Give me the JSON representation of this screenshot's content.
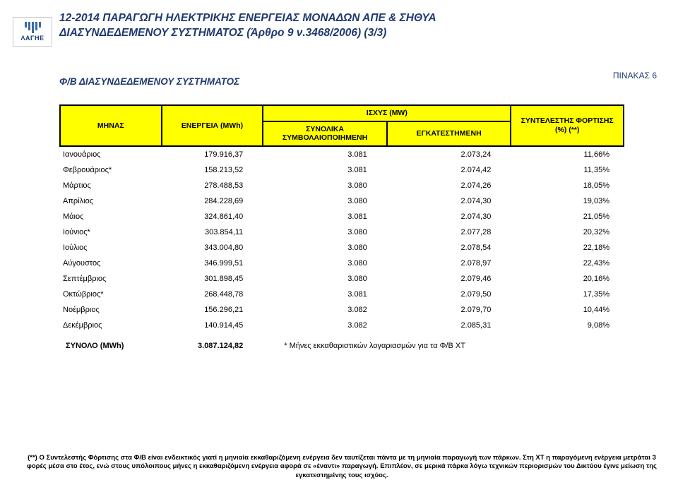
{
  "logo": {
    "label": "ΛΑΓΗΕ"
  },
  "header": {
    "line1": "12-2014 ΠΑΡΑΓΩΓΗ ΗΛΕΚΤΡΙΚΗΣ ΕΝΕΡΓΕΙΑΣ ΜΟΝΑΔΩΝ ΑΠΕ & ΣΗΘΥΑ",
    "line2": "ΔΙΑΣΥΝΔΕΔΕΜΕΝΟΥ ΣΥΣΤΗΜΑΤΟΣ (Άρθρο 9 ν.3468/2006) (3/3)"
  },
  "subtitle": "Φ/Β ΔΙΑΣΥΝΔΕΔΕΜΕΝΟΥ ΣΥΣΤΗΜΑΤΟΣ",
  "pinax": "ΠΙΝΑΚΑΣ 6",
  "table": {
    "headers": {
      "month": "ΜΗΝΑΣ",
      "energy": "ΕΝΕΡΓΕΙΑ (MWh)",
      "power_group": "ΙΣΧΥΣ (MW)",
      "power_contracted": "ΣΥΝΟΛΙΚΑ ΣΥΜΒΟΛΑΙΟΠΟΙΗΜΕΝΗ",
      "power_installed": "ΕΓΚΑΤΕΣΤΗΜΕΝΗ",
      "load_factor": "ΣΥΝΤΕΛΕΣΤΗΣ ΦΟΡΤΙΣΗΣ (%) (**)"
    },
    "rows": [
      {
        "m": "Ιανουάριος",
        "e": "179.916,37",
        "c": "3.081",
        "i": "2.073,24",
        "f": "11,66%"
      },
      {
        "m": "Φεβρουάριος*",
        "e": "158.213,52",
        "c": "3.081",
        "i": "2.074,42",
        "f": "11,35%"
      },
      {
        "m": "Μάρτιος",
        "e": "278.488,53",
        "c": "3.080",
        "i": "2.074,26",
        "f": "18,05%"
      },
      {
        "m": "Απρίλιος",
        "e": "284.228,69",
        "c": "3.080",
        "i": "2.074,30",
        "f": "19,03%"
      },
      {
        "m": "Μάιος",
        "e": "324.861,40",
        "c": "3.081",
        "i": "2.074,30",
        "f": "21,05%"
      },
      {
        "m": "Ιούνιος*",
        "e": "303.854,11",
        "c": "3.080",
        "i": "2.077,28",
        "f": "20,32%"
      },
      {
        "m": "Ιούλιος",
        "e": "343.004,80",
        "c": "3.080",
        "i": "2.078,54",
        "f": "22,18%"
      },
      {
        "m": "Αύγουστος",
        "e": "346.999,51",
        "c": "3.080",
        "i": "2.078,97",
        "f": "22,43%"
      },
      {
        "m": "Σεπτέμβριος",
        "e": "301.898,45",
        "c": "3.080",
        "i": "2.079,46",
        "f": "20,16%"
      },
      {
        "m": "Οκτώβριος*",
        "e": "268.448,78",
        "c": "3.081",
        "i": "2.079,50",
        "f": "17,35%"
      },
      {
        "m": "Νοέμβριος",
        "e": "156.296,21",
        "c": "3.082",
        "i": "2.079,70",
        "f": "10,44%"
      },
      {
        "m": "Δεκέμβριος",
        "e": "140.914,45",
        "c": "3.082",
        "i": "2.085,31",
        "f": "9,08%"
      }
    ],
    "total": {
      "label": "ΣΥΝΟΛΟ (MWh)",
      "value": "3.087.124,82",
      "note": "* Μήνες εκκαθαριστικών λογαριασμών για τα Φ/Β ΧΤ"
    }
  },
  "footnote": "(**) Ο Συντελεστής Φόρτισης στα Φ/Β είναι ενδεικτικός γιατί η μηνιαία εκκαθαριζόμενη ενέργεια δεν ταυτίζεται πάντα με τη μηνιαία παραγωγή των πάρκων. Στη ΧΤ η παραγόμενη ενέργεια μετράται 3 φορές μέσα στο έτος, ενώ στους υπόλοιπους μήνες η εκκαθαριζόμενη ενέργεια αφορά σε «έναντι» παραγωγή. Επιπλέον, σε μερικά πάρκα λόγω τεχνικών περιορισμών του Δικτύου έγινε μείωση της εγκατεστημένης τους ισχύος.",
  "styling": {
    "header_bg": "#ffff00",
    "header_border": "#000000",
    "title_color": "#1f3a6e",
    "body_bg": "#ffffff",
    "font_family": "Arial",
    "col_widths_pct": [
      18,
      18,
      22,
      22,
      20
    ]
  }
}
